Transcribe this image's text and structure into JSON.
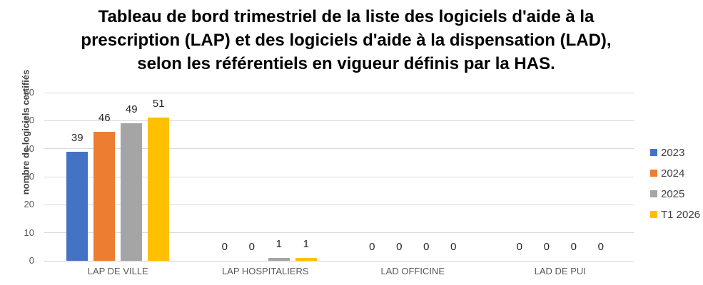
{
  "chart_data": {
    "type": "bar",
    "title": "Tableau de bord trimestriel de la liste des logiciels d'aide à la prescription (LAP) et des logiciels d'aide à la dispensation (LAD), selon les référentiels en vigueur définis par la HAS.",
    "title_lines": [
      "Tableau de bord trimestriel de la liste des logiciels d'aide à la",
      "prescription (LAP) et des logiciels d'aide à la dispensation (LAD),",
      "selon les référentiels en vigueur définis par la HAS."
    ],
    "ylabel": "nombre de logiciels certifiés",
    "xlabel": "",
    "categories": [
      "LAP DE VILLE",
      "LAP HOSPITALIERS",
      "LAD OFFICINE",
      "LAD DE PUI"
    ],
    "series": [
      {
        "name": "2023",
        "color": "#4472C4",
        "values": [
          39,
          0,
          0,
          0
        ]
      },
      {
        "name": "2024",
        "color": "#ED7D31",
        "values": [
          46,
          0,
          0,
          0
        ]
      },
      {
        "name": "2025",
        "color": "#A5A5A5",
        "values": [
          49,
          1,
          0,
          0
        ]
      },
      {
        "name": "T1 2026",
        "color": "#FFC000",
        "values": [
          51,
          1,
          0,
          0
        ]
      }
    ],
    "ylim": [
      0,
      60
    ],
    "ytick_interval": 10,
    "yticks": [
      0,
      10,
      20,
      30,
      40,
      50,
      60
    ],
    "grid": true,
    "data_labels": true,
    "legend_position": "right",
    "colors": {
      "gridline": "#D9D9D9",
      "axis_line": "#D0D0D0",
      "tick_label": "#595959",
      "category_label": "#595959",
      "data_label": "#262626",
      "title": "#000000",
      "axis_title": "#404040",
      "legend_text": "#404040",
      "background": "#FFFFFF"
    }
  }
}
